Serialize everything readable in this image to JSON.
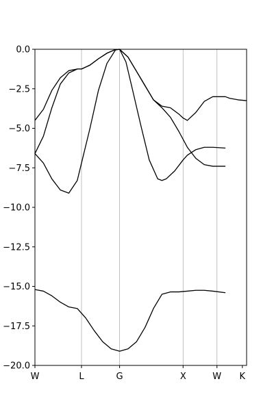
{
  "chart_data": {
    "type": "line",
    "title": "",
    "xlabel": "",
    "ylabel": "",
    "x_ticks": [
      "W",
      "L",
      "G",
      "X",
      "W",
      "K"
    ],
    "ylim": [
      -20.0,
      0.0
    ],
    "y_ticks": [
      "0.0",
      "−2.5",
      "−5.0",
      "−7.5",
      "−10.0",
      "−12.5",
      "−15.0",
      "−17.5",
      "−20.0"
    ],
    "y_tick_values": [
      0.0,
      -2.5,
      -5.0,
      -7.5,
      -10.0,
      -12.5,
      -15.0,
      -17.5,
      -20.0
    ],
    "grid": "vertical lines at high-symmetry points",
    "line_color": "#000000",
    "grid_color": "#b0b0b0",
    "series": [
      {
        "x": [
          0,
          0.2,
          0.4,
          0.6,
          0.8,
          1.0,
          1.1,
          1.3,
          1.5,
          1.7,
          1.9,
          2.0,
          2.2,
          2.4,
          2.6,
          2.8,
          3.0,
          3.2,
          3.4,
          3.5,
          3.6,
          3.8,
          4.0,
          4.2,
          4.5,
          4.6,
          4.8,
          5.0
        ],
        "y": [
          -4.5,
          -3.8,
          -2.6,
          -1.8,
          -1.35,
          -1.25,
          -1.25,
          -1.0,
          -0.6,
          -0.25,
          -0.02,
          0.0,
          -0.5,
          -1.4,
          -2.3,
          -3.2,
          -3.6,
          -3.7,
          -4.1,
          -4.35,
          -4.5,
          -4.0,
          -3.3,
          -3.0,
          -3.0,
          -3.1,
          -3.2,
          -3.25
        ]
      },
      {
        "x": [
          0,
          0.2,
          0.4,
          0.6,
          0.8,
          1.0,
          1.1,
          1.3,
          1.5,
          1.7,
          1.9,
          2.0,
          2.2,
          2.4,
          2.6,
          2.8,
          3.0,
          3.2,
          3.4,
          3.6,
          3.8,
          4.0,
          4.2,
          4.5
        ],
        "y": [
          -6.6,
          -5.5,
          -3.7,
          -2.2,
          -1.5,
          -1.25,
          -1.25,
          -1.0,
          -0.6,
          -0.25,
          -0.02,
          0.0,
          -0.5,
          -1.4,
          -2.3,
          -3.2,
          -3.7,
          -4.3,
          -5.2,
          -6.2,
          -6.9,
          -7.3,
          -7.4,
          -7.4
        ]
      },
      {
        "x": [
          0,
          0.2,
          0.4,
          0.6,
          0.8,
          1.0,
          1.1,
          1.3,
          1.5,
          1.7,
          1.9,
          2.0,
          2.15,
          2.3,
          2.5,
          2.7,
          2.9,
          3.0,
          3.1,
          3.3,
          3.5,
          3.6,
          3.8,
          4.0,
          4.2,
          4.5
        ],
        "y": [
          -6.6,
          -7.2,
          -8.2,
          -8.9,
          -9.1,
          -8.3,
          -7.2,
          -5.0,
          -2.6,
          -0.9,
          -0.05,
          0.0,
          -0.8,
          -2.5,
          -4.8,
          -7.0,
          -8.2,
          -8.3,
          -8.2,
          -7.7,
          -7.0,
          -6.7,
          -6.35,
          -6.2,
          -6.2,
          -6.25
        ]
      },
      {
        "x": [
          0,
          0.2,
          0.4,
          0.6,
          0.8,
          1.0,
          1.2,
          1.4,
          1.6,
          1.8,
          2.0,
          2.2,
          2.4,
          2.6,
          2.8,
          3.0,
          3.2,
          3.4,
          3.6,
          3.8,
          4.0,
          4.2,
          4.5
        ],
        "y": [
          -15.2,
          -15.3,
          -15.6,
          -16.0,
          -16.3,
          -16.4,
          -17.0,
          -17.8,
          -18.5,
          -18.95,
          -19.1,
          -18.95,
          -18.5,
          -17.6,
          -16.4,
          -15.5,
          -15.35,
          -15.35,
          -15.3,
          -15.25,
          -15.25,
          -15.3,
          -15.4
        ]
      }
    ]
  }
}
